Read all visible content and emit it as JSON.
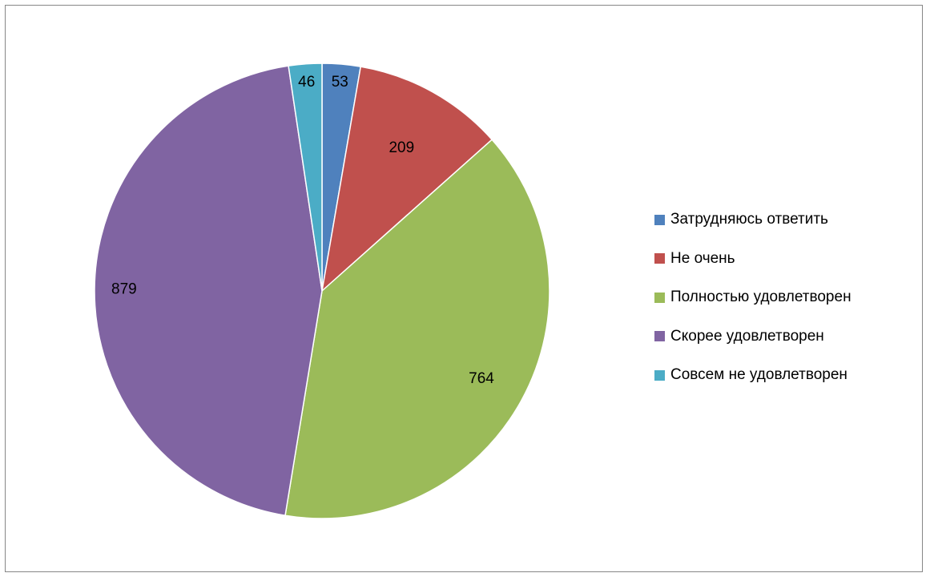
{
  "chart_data": {
    "type": "pie",
    "title": "",
    "categories": [
      "Затрудняюсь ответить",
      "Не очень",
      "Полностью удовлетворен",
      "Скорее удовлетворен",
      "Совсем не удовлетворен"
    ],
    "values": [
      53,
      209,
      764,
      879,
      46
    ],
    "colors": [
      "#4F81BD",
      "#C0504D",
      "#9BBB59",
      "#8064A2",
      "#4BACC6"
    ],
    "start_angle": "12 o'clock",
    "direction": "clockwise",
    "legend_position": "right",
    "data_labels": true
  }
}
